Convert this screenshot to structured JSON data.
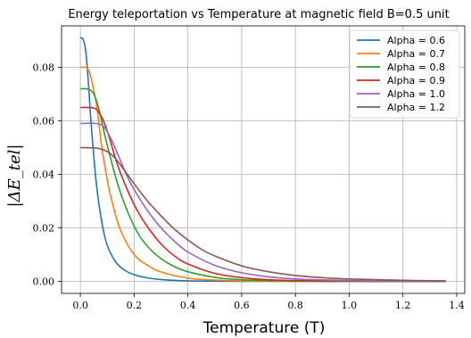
{
  "chart_data": {
    "type": "line",
    "title": "Energy teleportation vs Temperature at magnetic field B=0.5 unit",
    "xlabel": "Temperature (T)",
    "ylabel": "|ΔE_tel|",
    "xlim": [
      -0.07,
      1.43
    ],
    "ylim": [
      -0.0045,
      0.0955
    ],
    "xticks": [
      0.0,
      0.2,
      0.4,
      0.6,
      0.8,
      1.0,
      1.2,
      1.4
    ],
    "yticks": [
      0.0,
      0.02,
      0.04,
      0.06,
      0.08
    ],
    "xtick_labels": [
      "0.0",
      "0.2",
      "0.4",
      "0.6",
      "0.8",
      "1.0",
      "1.2",
      "1.4"
    ],
    "ytick_labels": [
      "0.00",
      "0.02",
      "0.04",
      "0.06",
      "0.08"
    ],
    "grid": true,
    "legend_position": "top-right",
    "series": [
      {
        "name": "Alpha = 0.6",
        "color": "#1f77b4",
        "x": [
          0.0,
          0.01,
          0.02,
          0.03,
          0.04,
          0.06,
          0.08,
          0.1,
          0.13,
          0.16,
          0.2,
          0.25,
          0.3,
          0.4,
          0.5,
          0.6,
          0.8,
          1.0,
          1.2,
          1.36
        ],
        "y": [
          0.091,
          0.0905,
          0.086,
          0.074,
          0.059,
          0.036,
          0.022,
          0.0135,
          0.0075,
          0.0045,
          0.0025,
          0.0013,
          0.0007,
          0.0002,
          0.0001,
          0.0,
          0.0,
          0.0,
          0.0,
          0.0
        ]
      },
      {
        "name": "Alpha = 0.7",
        "color": "#ff7f0e",
        "x": [
          0.0,
          0.02,
          0.03,
          0.04,
          0.06,
          0.08,
          0.1,
          0.12,
          0.15,
          0.2,
          0.25,
          0.3,
          0.4,
          0.5,
          0.6,
          0.8,
          1.0,
          1.2,
          1.36
        ],
        "y": [
          0.08,
          0.08,
          0.079,
          0.076,
          0.066,
          0.05,
          0.038,
          0.029,
          0.019,
          0.01,
          0.006,
          0.0035,
          0.0012,
          0.0005,
          0.0002,
          0.0,
          0.0,
          0.0,
          0.0
        ]
      },
      {
        "name": "Alpha = 0.8",
        "color": "#2ca02c",
        "x": [
          0.0,
          0.03,
          0.05,
          0.07,
          0.09,
          0.11,
          0.14,
          0.18,
          0.22,
          0.26,
          0.3,
          0.35,
          0.4,
          0.5,
          0.6,
          0.7,
          0.8,
          1.0,
          1.2,
          1.36
        ],
        "y": [
          0.072,
          0.0718,
          0.07,
          0.064,
          0.055,
          0.047,
          0.036,
          0.025,
          0.017,
          0.012,
          0.0085,
          0.0055,
          0.0036,
          0.0015,
          0.0006,
          0.0003,
          0.0001,
          0.0,
          0.0,
          0.0
        ]
      },
      {
        "name": "Alpha = 0.9",
        "color": "#d62728",
        "x": [
          0.0,
          0.05,
          0.07,
          0.09,
          0.11,
          0.14,
          0.18,
          0.22,
          0.26,
          0.3,
          0.35,
          0.4,
          0.5,
          0.6,
          0.7,
          0.8,
          1.0,
          1.2,
          1.36
        ],
        "y": [
          0.065,
          0.0648,
          0.063,
          0.059,
          0.053,
          0.043,
          0.033,
          0.025,
          0.019,
          0.014,
          0.0095,
          0.0065,
          0.003,
          0.0014,
          0.0006,
          0.0003,
          0.0001,
          0.0,
          0.0
        ]
      },
      {
        "name": "Alpha = 1.0",
        "color": "#9467bd",
        "x": [
          0.0,
          0.06,
          0.09,
          0.12,
          0.15,
          0.18,
          0.22,
          0.26,
          0.3,
          0.35,
          0.4,
          0.5,
          0.6,
          0.7,
          0.8,
          1.0,
          1.2,
          1.36
        ],
        "y": [
          0.059,
          0.059,
          0.0575,
          0.052,
          0.045,
          0.038,
          0.031,
          0.025,
          0.02,
          0.015,
          0.011,
          0.006,
          0.0032,
          0.0017,
          0.0009,
          0.0003,
          0.0001,
          0.0
        ]
      },
      {
        "name": "Alpha = 1.2",
        "color": "#8c564b",
        "x": [
          0.0,
          0.06,
          0.1,
          0.13,
          0.16,
          0.2,
          0.25,
          0.3,
          0.35,
          0.4,
          0.45,
          0.5,
          0.6,
          0.7,
          0.8,
          0.9,
          1.0,
          1.2,
          1.36
        ],
        "y": [
          0.05,
          0.0498,
          0.0485,
          0.046,
          0.042,
          0.0365,
          0.03,
          0.0245,
          0.0195,
          0.0155,
          0.012,
          0.0095,
          0.0058,
          0.0036,
          0.0022,
          0.0014,
          0.0009,
          0.0004,
          0.0002
        ]
      }
    ]
  }
}
